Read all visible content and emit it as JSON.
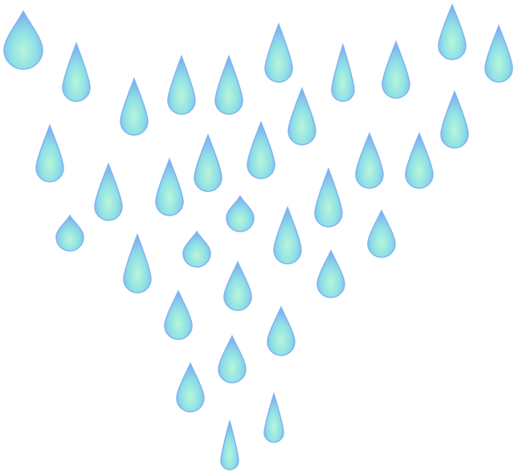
{
  "scene": {
    "subject": "raindrops-clipart",
    "background_color": "#ffffff",
    "drop_count": 37,
    "colors": {
      "edge": "#7fb4f0",
      "body": "#8fe0e6",
      "highlight": "#b8f6d8"
    }
  }
}
